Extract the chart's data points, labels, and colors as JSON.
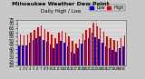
{
  "title": "Milwaukee Weather Dew Point",
  "subtitle": "Daily High / Low",
  "background_color": "#c8c8c8",
  "plot_bg_color": "#d8d8d8",
  "high_color": "#dd0000",
  "low_color": "#0000cc",
  "dashed_color": "#888888",
  "days": [
    1,
    2,
    3,
    4,
    5,
    6,
    7,
    8,
    9,
    10,
    11,
    12,
    13,
    14,
    15,
    16,
    17,
    18,
    19,
    20,
    21,
    22,
    23,
    24,
    25,
    26,
    27,
    28,
    29,
    30,
    31
  ],
  "high": [
    57,
    56,
    57,
    59,
    63,
    66,
    68,
    64,
    61,
    57,
    53,
    59,
    62,
    60,
    55,
    50,
    46,
    52,
    58,
    63,
    65,
    71,
    67,
    65,
    61,
    55,
    53,
    51,
    50,
    53,
    56
  ],
  "low": [
    44,
    44,
    44,
    47,
    51,
    53,
    55,
    51,
    49,
    45,
    41,
    46,
    50,
    48,
    43,
    37,
    34,
    41,
    46,
    51,
    53,
    59,
    54,
    52,
    48,
    43,
    41,
    39,
    37,
    41,
    43
  ],
  "dashed_days": [
    22,
    23
  ],
  "ylim": [
    20,
    75
  ],
  "yticks": [
    20,
    25,
    30,
    35,
    40,
    45,
    50,
    55,
    60,
    65,
    70,
    75
  ],
  "ylabel_fontsize": 3.5,
  "xlabel_fontsize": 3.0,
  "title_fontsize": 4.5,
  "subtitle_fontsize": 4.0,
  "legend_fontsize": 3.5,
  "grid_color": "#bbbbbb",
  "bar_width": 0.42
}
